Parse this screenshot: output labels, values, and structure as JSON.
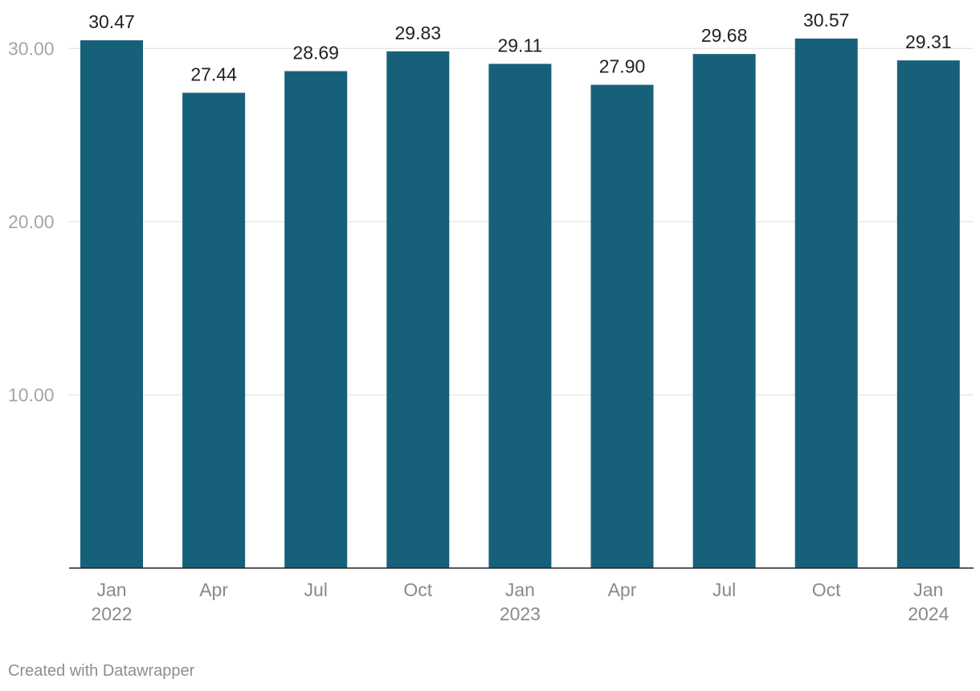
{
  "chart_data": {
    "type": "bar",
    "categories": [
      "Jan 2022",
      "Apr",
      "Jul",
      "Oct",
      "Jan 2023",
      "Apr",
      "Jul",
      "Oct",
      "Jan 2024"
    ],
    "category_lines": [
      [
        "Jan",
        "2022"
      ],
      [
        "Apr"
      ],
      [
        "Jul"
      ],
      [
        "Oct"
      ],
      [
        "Jan",
        "2023"
      ],
      [
        "Apr"
      ],
      [
        "Jul"
      ],
      [
        "Oct"
      ],
      [
        "Jan",
        "2024"
      ]
    ],
    "values": [
      30.47,
      27.44,
      28.69,
      29.83,
      29.11,
      27.9,
      29.68,
      30.57,
      29.31
    ],
    "value_labels": [
      "30.47",
      "27.44",
      "28.69",
      "29.83",
      "29.11",
      "27.90",
      "29.68",
      "30.57",
      "29.31"
    ],
    "y_ticks": [
      10,
      20,
      30
    ],
    "y_tick_labels": [
      "10.00",
      "20.00",
      "30.00"
    ],
    "ylim": [
      0,
      30.57
    ],
    "grid": true,
    "bar_color": "#17607a",
    "title": "",
    "xlabel": "",
    "ylabel": ""
  },
  "footer": {
    "credit": "Created with Datawrapper"
  }
}
